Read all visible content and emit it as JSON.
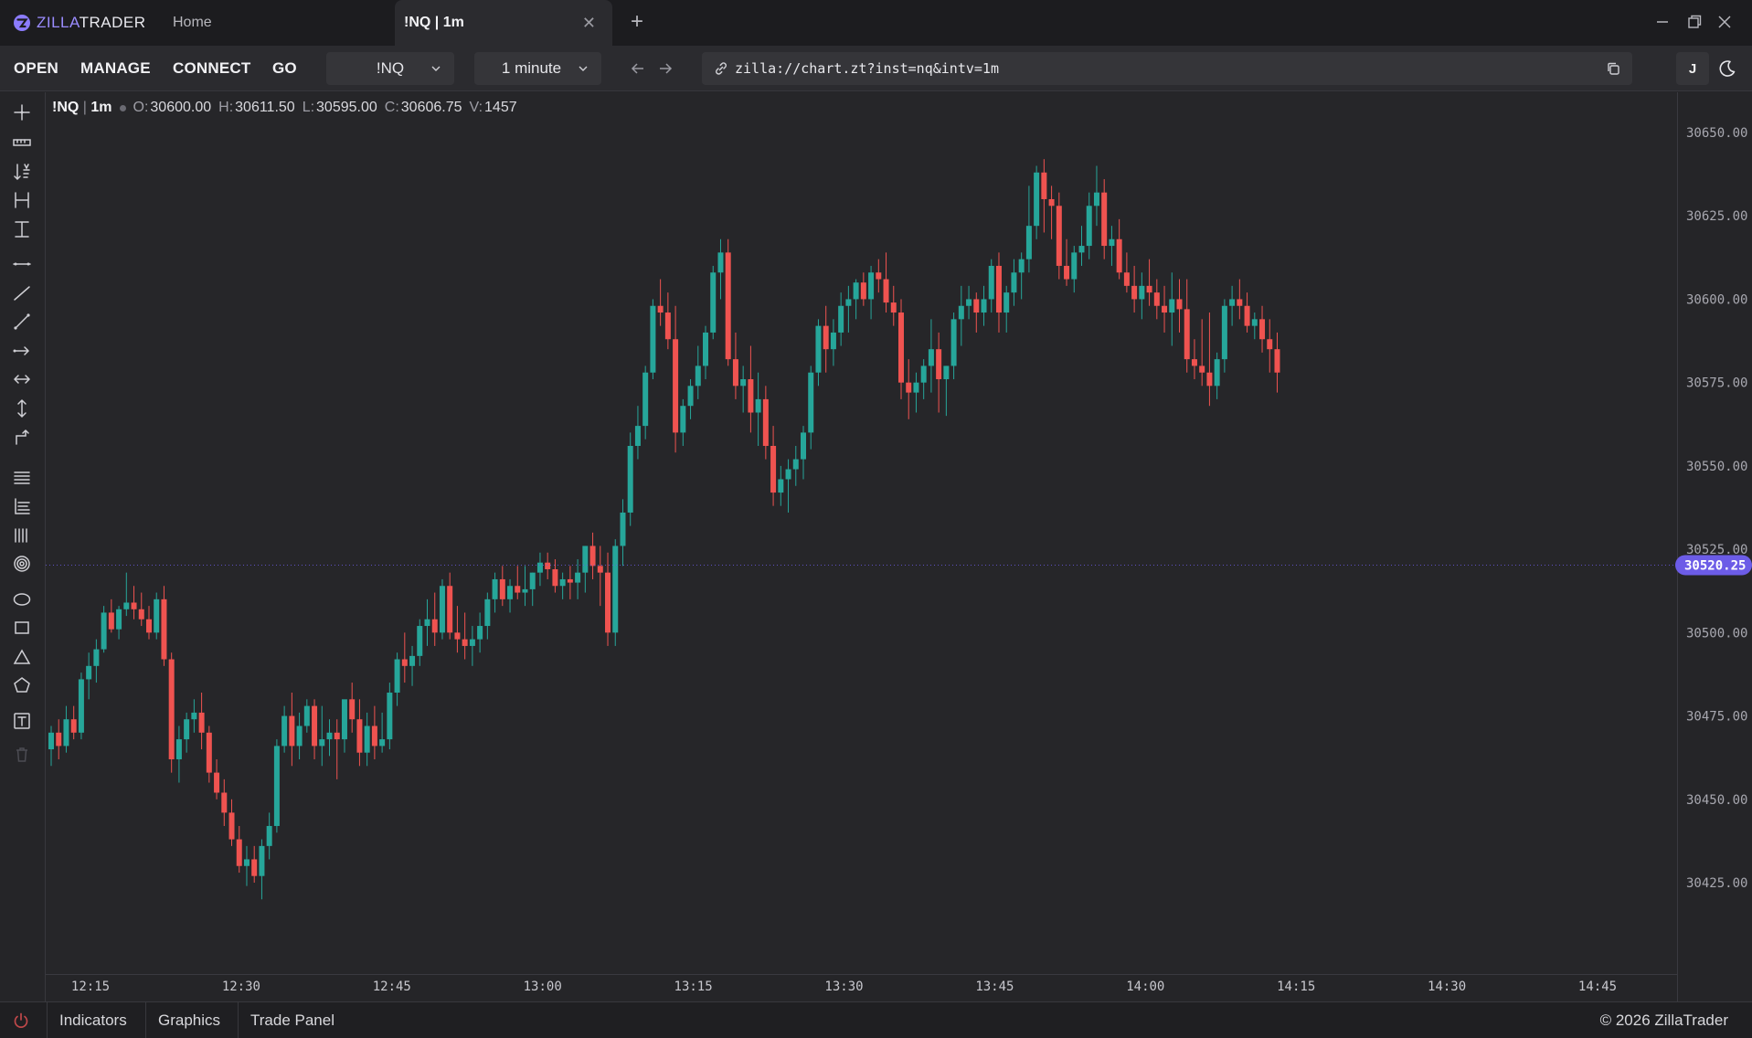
{
  "app": {
    "name_prefix": "ZILLA",
    "name_suffix": "TRADER",
    "accent": "#9b8cff"
  },
  "tabs": [
    {
      "label": "Home",
      "active": false
    },
    {
      "label": "!NQ | 1m",
      "active": true
    }
  ],
  "toolbar": {
    "menu": [
      "OPEN",
      "MANAGE",
      "CONNECT",
      "GO"
    ],
    "instrument": "!NQ",
    "interval": "1 minute",
    "url": "zilla://chart.zt?inst=nq&intv=1m",
    "user_initial": "J"
  },
  "tools": [
    "crosshair-tool-icon",
    "ruler-tool-icon",
    "sort-tool-icon",
    "horizontal-range-tool-icon",
    "vertical-range-tool-icon",
    "horizontal-line-tool-icon",
    "trend-line-tool-icon",
    "extended-line-tool-icon",
    "ray-tool-icon",
    "double-arrow-tool-icon",
    "vertical-arrow-tool-icon",
    "path-tool-icon",
    "parallel-lines-tool-icon",
    "fib-levels-tool-icon",
    "vertical-lines-tool-icon",
    "target-tool-icon",
    "ellipse-tool-icon",
    "rectangle-tool-icon",
    "triangle-tool-icon",
    "pentagon-tool-icon",
    "text-tool-icon",
    "trash-icon"
  ],
  "legend": {
    "symbol": "!NQ",
    "sep": "|",
    "interval": "1m",
    "o_label": "O:",
    "o": "30600.00",
    "h_label": "H:",
    "h": "30611.50",
    "l_label": "L:",
    "l": "30595.00",
    "c_label": "C:",
    "c": "30606.75",
    "v_label": "V:",
    "v": "1457"
  },
  "chart_data": {
    "type": "candlestick",
    "title": "!NQ | 1m",
    "xlabel": "",
    "ylabel": "",
    "y_ticks": [
      "30650.00",
      "30625.00",
      "30600.00",
      "30575.00",
      "30550.00",
      "30525.00",
      "30500.00",
      "30475.00",
      "30450.00",
      "30425.00"
    ],
    "ylim": [
      30400,
      30662
    ],
    "x_ticks": [
      "12:15",
      "12:30",
      "12:45",
      "13:00",
      "13:15",
      "13:30",
      "13:45",
      "14:00",
      "14:15",
      "14:30",
      "14:45"
    ],
    "current_price": "30520.25",
    "colors": {
      "up": "#26a69a",
      "down": "#ef5350",
      "price_tag": "#6c5ce7"
    },
    "candles": [
      [
        30465,
        30472,
        30460,
        30470
      ],
      [
        30470,
        30474,
        30462,
        30466
      ],
      [
        30466,
        30478,
        30464,
        30474
      ],
      [
        30474,
        30478,
        30468,
        30470
      ],
      [
        30470,
        30488,
        30468,
        30486
      ],
      [
        30486,
        30494,
        30480,
        30490
      ],
      [
        30490,
        30498,
        30485,
        30495
      ],
      [
        30495,
        30508,
        30494,
        30506
      ],
      [
        30506,
        30510,
        30500,
        30501
      ],
      [
        30501,
        30508,
        30498,
        30507
      ],
      [
        30507,
        30518,
        30505,
        30509
      ],
      [
        30509,
        30514,
        30504,
        30507
      ],
      [
        30507,
        30512,
        30502,
        30504
      ],
      [
        30504,
        30508,
        30498,
        30500
      ],
      [
        30500,
        30512,
        30498,
        30510
      ],
      [
        30510,
        30514,
        30490,
        30492
      ],
      [
        30492,
        30494,
        30458,
        30462
      ],
      [
        30462,
        30472,
        30455,
        30468
      ],
      [
        30468,
        30476,
        30464,
        30474
      ],
      [
        30474,
        30480,
        30470,
        30476
      ],
      [
        30476,
        30482,
        30465,
        30470
      ],
      [
        30470,
        30472,
        30455,
        30458
      ],
      [
        30458,
        30462,
        30450,
        30452
      ],
      [
        30452,
        30456,
        30442,
        30446
      ],
      [
        30446,
        30450,
        30436,
        30438
      ],
      [
        30438,
        30442,
        30428,
        30430
      ],
      [
        30430,
        30436,
        30424,
        30432
      ],
      [
        30432,
        30436,
        30425,
        30427
      ],
      [
        30427,
        30438,
        30420,
        30436
      ],
      [
        30436,
        30446,
        30432,
        30442
      ],
      [
        30442,
        30468,
        30440,
        30466
      ],
      [
        30466,
        30478,
        30464,
        30475
      ],
      [
        30475,
        30482,
        30460,
        30466
      ],
      [
        30466,
        30476,
        30462,
        30472
      ],
      [
        30472,
        30480,
        30470,
        30478
      ],
      [
        30478,
        30480,
        30462,
        30466
      ],
      [
        30466,
        30478,
        30460,
        30468
      ],
      [
        30468,
        30474,
        30463,
        30470
      ],
      [
        30470,
        30474,
        30456,
        30468
      ],
      [
        30468,
        30478,
        30464,
        30480
      ],
      [
        30480,
        30485,
        30470,
        30474
      ],
      [
        30474,
        30480,
        30460,
        30464
      ],
      [
        30464,
        30476,
        30460,
        30472
      ],
      [
        30472,
        30478,
        30462,
        30466
      ],
      [
        30466,
        30476,
        30464,
        30468
      ],
      [
        30468,
        30485,
        30465,
        30482
      ],
      [
        30482,
        30494,
        30478,
        30492
      ],
      [
        30492,
        30500,
        30485,
        30490
      ],
      [
        30490,
        30496,
        30484,
        30493
      ],
      [
        30493,
        30504,
        30490,
        30502
      ],
      [
        30502,
        30510,
        30496,
        30504
      ],
      [
        30504,
        30512,
        30496,
        30500
      ],
      [
        30500,
        30516,
        30498,
        30514
      ],
      [
        30514,
        30518,
        30498,
        30500
      ],
      [
        30500,
        30508,
        30494,
        30498
      ],
      [
        30498,
        30506,
        30492,
        30496
      ],
      [
        30496,
        30502,
        30490,
        30498
      ],
      [
        30498,
        30506,
        30494,
        30502
      ],
      [
        30502,
        30512,
        30498,
        30510
      ],
      [
        30510,
        30518,
        30506,
        30516
      ],
      [
        30516,
        30520,
        30508,
        30510
      ],
      [
        30510,
        30516,
        30506,
        30514
      ],
      [
        30514,
        30520,
        30510,
        30512
      ],
      [
        30512,
        30520,
        30508,
        30513
      ],
      [
        30513,
        30518,
        30508,
        30518
      ],
      [
        30518,
        30524,
        30514,
        30521
      ],
      [
        30521,
        30524,
        30516,
        30519
      ],
      [
        30519,
        30522,
        30512,
        30514
      ],
      [
        30514,
        30518,
        30510,
        30516
      ],
      [
        30516,
        30520,
        30510,
        30515
      ],
      [
        30515,
        30522,
        30510,
        30518
      ],
      [
        30518,
        30526,
        30512,
        30526
      ],
      [
        30526,
        30530,
        30516,
        30520
      ],
      [
        30520,
        30526,
        30508,
        30518
      ],
      [
        30518,
        30524,
        30496,
        30500
      ],
      [
        30500,
        30528,
        30496,
        30526
      ],
      [
        30526,
        30540,
        30520,
        30536
      ],
      [
        30536,
        30560,
        30532,
        30556
      ],
      [
        30556,
        30568,
        30552,
        30562
      ],
      [
        30562,
        30580,
        30558,
        30578
      ],
      [
        30578,
        30600,
        30576,
        30598
      ],
      [
        30598,
        30606,
        30592,
        30596
      ],
      [
        30596,
        30602,
        30585,
        30588
      ],
      [
        30588,
        30598,
        30554,
        30560
      ],
      [
        30560,
        30570,
        30556,
        30568
      ],
      [
        30568,
        30576,
        30564,
        30574
      ],
      [
        30574,
        30586,
        30570,
        30580
      ],
      [
        30580,
        30592,
        30576,
        30590
      ],
      [
        30590,
        30610,
        30588,
        30608
      ],
      [
        30608,
        30618,
        30600,
        30614
      ],
      [
        30614,
        30618,
        30580,
        30582
      ],
      [
        30582,
        30590,
        30570,
        30574
      ],
      [
        30574,
        30580,
        30566,
        30576
      ],
      [
        30576,
        30586,
        30560,
        30566
      ],
      [
        30566,
        30578,
        30556,
        30570
      ],
      [
        30570,
        30574,
        30552,
        30556
      ],
      [
        30556,
        30562,
        30538,
        30542
      ],
      [
        30542,
        30550,
        30538,
        30546
      ],
      [
        30546,
        30552,
        30536,
        30549
      ],
      [
        30549,
        30556,
        30544,
        30552
      ],
      [
        30552,
        30562,
        30546,
        30560
      ],
      [
        30560,
        30580,
        30555,
        30578
      ],
      [
        30578,
        30594,
        30574,
        30592
      ],
      [
        30592,
        30598,
        30578,
        30585
      ],
      [
        30585,
        30594,
        30580,
        30590
      ],
      [
        30590,
        30602,
        30586,
        30598
      ],
      [
        30598,
        30604,
        30590,
        30600
      ],
      [
        30600,
        30606,
        30594,
        30605
      ],
      [
        30605,
        30608,
        30598,
        30600
      ],
      [
        30600,
        30610,
        30594,
        30608
      ],
      [
        30608,
        30612,
        30602,
        30606
      ],
      [
        30606,
        30614,
        30596,
        30599
      ],
      [
        30599,
        30604,
        30592,
        30596
      ],
      [
        30596,
        30600,
        30570,
        30575
      ],
      [
        30575,
        30582,
        30564,
        30572
      ],
      [
        30572,
        30578,
        30566,
        30575
      ],
      [
        30575,
        30582,
        30570,
        30580
      ],
      [
        30580,
        30594,
        30572,
        30585
      ],
      [
        30585,
        30590,
        30566,
        30576
      ],
      [
        30576,
        30580,
        30565,
        30580
      ],
      [
        30580,
        30596,
        30576,
        30594
      ],
      [
        30594,
        30604,
        30586,
        30598
      ],
      [
        30598,
        30604,
        30594,
        30600
      ],
      [
        30600,
        30602,
        30590,
        30596
      ],
      [
        30596,
        30604,
        30592,
        30600
      ],
      [
        30600,
        30612,
        30596,
        30610
      ],
      [
        30610,
        30614,
        30590,
        30596
      ],
      [
        30596,
        30604,
        30590,
        30602
      ],
      [
        30602,
        30612,
        30598,
        30608
      ],
      [
        30608,
        30614,
        30600,
        30612
      ],
      [
        30612,
        30634,
        30608,
        30622
      ],
      [
        30622,
        30640,
        30618,
        30638
      ],
      [
        30638,
        30642,
        30620,
        30630
      ],
      [
        30630,
        30634,
        30618,
        30628
      ],
      [
        30628,
        30632,
        30606,
        30610
      ],
      [
        30610,
        30618,
        30604,
        30606
      ],
      [
        30606,
        30616,
        30602,
        30614
      ],
      [
        30614,
        30622,
        30610,
        30616
      ],
      [
        30616,
        30632,
        30612,
        30628
      ],
      [
        30628,
        30640,
        30622,
        30632
      ],
      [
        30632,
        30636,
        30612,
        30616
      ],
      [
        30616,
        30622,
        30610,
        30618
      ],
      [
        30618,
        30624,
        30606,
        30608
      ],
      [
        30608,
        30614,
        30602,
        30604
      ],
      [
        30604,
        30610,
        30596,
        30600
      ],
      [
        30600,
        30608,
        30594,
        30604
      ],
      [
        30604,
        30612,
        30598,
        30602
      ],
      [
        30602,
        30606,
        30594,
        30598
      ],
      [
        30598,
        30604,
        30590,
        30596
      ],
      [
        30596,
        30608,
        30586,
        30600
      ],
      [
        30600,
        30606,
        30590,
        30597
      ],
      [
        30597,
        30606,
        30578,
        30582
      ],
      [
        30582,
        30588,
        30576,
        30580
      ],
      [
        30580,
        30594,
        30574,
        30578
      ],
      [
        30578,
        30596,
        30568,
        30574
      ],
      [
        30574,
        30584,
        30570,
        30582
      ],
      [
        30582,
        30600,
        30578,
        30598
      ],
      [
        30598,
        30604,
        30592,
        30600
      ],
      [
        30600,
        30606,
        30594,
        30598
      ],
      [
        30598,
        30602,
        30590,
        30592
      ],
      [
        30592,
        30596,
        30588,
        30594
      ],
      [
        30594,
        30598,
        30584,
        30588
      ],
      [
        30588,
        30594,
        30578,
        30585
      ],
      [
        30585,
        30590,
        30572,
        30578
      ]
    ]
  },
  "bottom": {
    "tabs": [
      "Indicators",
      "Graphics",
      "Trade Panel"
    ],
    "copyright": "© 2026 ZillaTrader"
  }
}
